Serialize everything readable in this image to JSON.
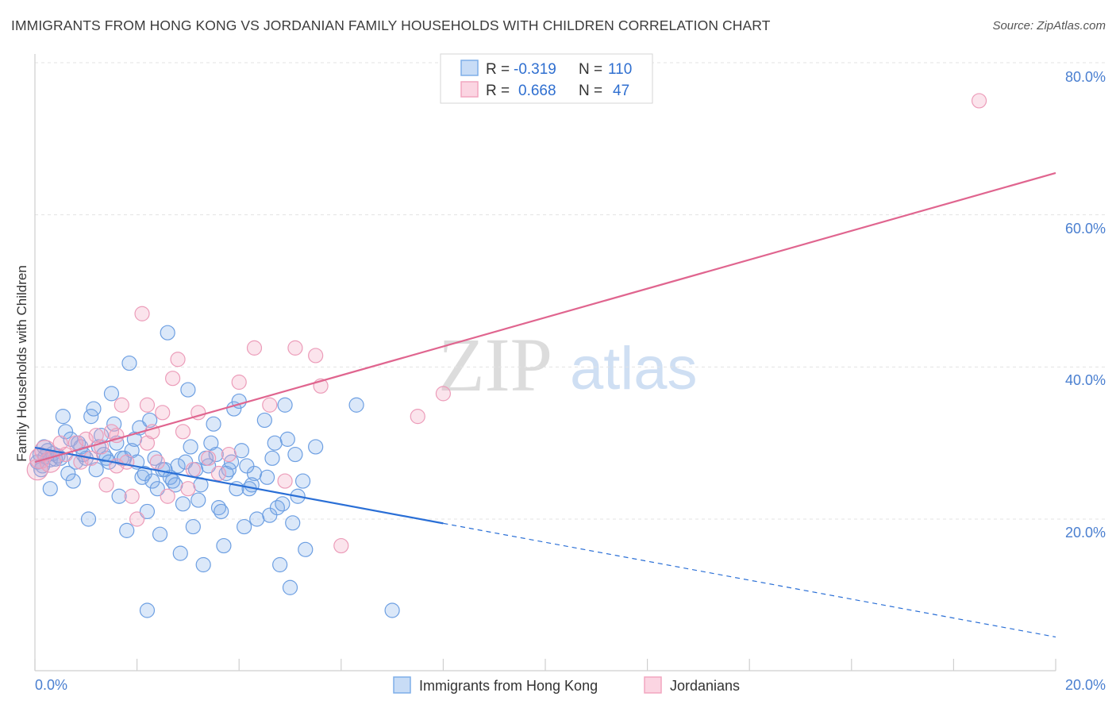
{
  "header": {
    "title": "IMMIGRANTS FROM HONG KONG VS JORDANIAN FAMILY HOUSEHOLDS WITH CHILDREN CORRELATION CHART",
    "source": "Source: ZipAtlas.com"
  },
  "watermark": {
    "zip": "ZIP",
    "atlas": "atlas"
  },
  "legend": {
    "rows": [
      {
        "r_label": "R =",
        "r_value": "-0.319",
        "n_label": "N =",
        "n_value": "110",
        "color": "#7eaee8"
      },
      {
        "r_label": "R =",
        "r_value": "0.668",
        "n_label": "N =",
        "n_value": "47",
        "color": "#f2a6c0"
      }
    ]
  },
  "bottom_legend": {
    "items": [
      {
        "label": "Immigrants from Hong Kong",
        "color": "#7eaee8"
      },
      {
        "label": "Jordanians",
        "color": "#f2a6c0"
      }
    ]
  },
  "chart_data": {
    "type": "scatter",
    "title": "IMMIGRANTS FROM HONG KONG VS JORDANIAN FAMILY HOUSEHOLDS WITH CHILDREN CORRELATION CHART",
    "xlabel": "",
    "ylabel": "Family Households with Children",
    "xlim": [
      0,
      20
    ],
    "ylim": [
      0,
      80
    ],
    "x_tick_labels": [
      "0.0%",
      "20.0%"
    ],
    "y_tick_labels": [
      "20.0%",
      "40.0%",
      "60.0%",
      "80.0%"
    ],
    "y_ticks": [
      20,
      40,
      60,
      80
    ],
    "grid": "horizontal dashed",
    "legend_position": "top-center",
    "series": [
      {
        "name": "Immigrants from Hong Kong",
        "color": "#5b93e0",
        "line_color": "#2a6fd6",
        "trend": {
          "x_start": 0,
          "y_start": 29.4,
          "x_solid_end": 8.0,
          "x_end": 20,
          "y_end": 4.5
        },
        "points": [
          [
            0.05,
            27.5
          ],
          [
            0.1,
            28.5
          ],
          [
            0.15,
            27.0
          ],
          [
            0.2,
            28.2
          ],
          [
            0.25,
            29.0
          ],
          [
            0.3,
            27.8
          ],
          [
            0.35,
            28.6
          ],
          [
            0.4,
            27.9
          ],
          [
            0.45,
            28.3
          ],
          [
            0.5,
            28.0
          ],
          [
            0.6,
            31.5
          ],
          [
            0.7,
            30.5
          ],
          [
            0.8,
            27.5
          ],
          [
            0.9,
            29.5
          ],
          [
            1.0,
            28.0
          ],
          [
            1.1,
            33.5
          ],
          [
            1.2,
            26.5
          ],
          [
            1.3,
            31.0
          ],
          [
            1.4,
            28.0
          ],
          [
            1.5,
            36.5
          ],
          [
            1.6,
            30.0
          ],
          [
            1.7,
            28.0
          ],
          [
            1.8,
            18.5
          ],
          [
            1.9,
            29.0
          ],
          [
            2.0,
            27.5
          ],
          [
            2.1,
            25.5
          ],
          [
            2.2,
            21.0
          ],
          [
            2.3,
            25.0
          ],
          [
            2.4,
            24.0
          ],
          [
            2.5,
            26.5
          ],
          [
            2.6,
            44.5
          ],
          [
            2.7,
            25.0
          ],
          [
            2.8,
            27.0
          ],
          [
            2.9,
            22.0
          ],
          [
            3.0,
            37.0
          ],
          [
            3.1,
            19.0
          ],
          [
            3.2,
            22.5
          ],
          [
            3.3,
            14.0
          ],
          [
            3.4,
            27.0
          ],
          [
            3.5,
            32.5
          ],
          [
            3.6,
            21.5
          ],
          [
            3.7,
            16.5
          ],
          [
            3.8,
            26.5
          ],
          [
            3.9,
            34.5
          ],
          [
            4.0,
            35.5
          ],
          [
            4.1,
            19.0
          ],
          [
            4.2,
            24.0
          ],
          [
            4.3,
            26.0
          ],
          [
            4.5,
            33.0
          ],
          [
            4.6,
            20.5
          ],
          [
            4.7,
            30.0
          ],
          [
            4.8,
            14.0
          ],
          [
            4.9,
            35.0
          ],
          [
            5.0,
            11.0
          ],
          [
            5.1,
            28.5
          ],
          [
            5.3,
            16.0
          ],
          [
            5.5,
            29.5
          ],
          [
            6.3,
            35.0
          ],
          [
            7.0,
            8.0
          ],
          [
            2.2,
            8.0
          ],
          [
            0.3,
            24.0
          ],
          [
            0.55,
            33.5
          ],
          [
            0.65,
            26.0
          ],
          [
            0.75,
            25.0
          ],
          [
            0.85,
            30.0
          ],
          [
            0.95,
            28.5
          ],
          [
            1.05,
            20.0
          ],
          [
            1.15,
            34.5
          ],
          [
            1.25,
            29.5
          ],
          [
            1.35,
            28.5
          ],
          [
            1.45,
            27.5
          ],
          [
            1.55,
            32.5
          ],
          [
            1.65,
            23.0
          ],
          [
            1.75,
            28.0
          ],
          [
            1.85,
            40.5
          ],
          [
            1.95,
            30.5
          ],
          [
            2.05,
            32.0
          ],
          [
            2.15,
            26.0
          ],
          [
            2.25,
            33.0
          ],
          [
            2.35,
            28.0
          ],
          [
            2.45,
            18.0
          ],
          [
            2.55,
            26.5
          ],
          [
            2.65,
            25.5
          ],
          [
            2.75,
            24.5
          ],
          [
            2.85,
            15.5
          ],
          [
            2.95,
            27.5
          ],
          [
            3.05,
            29.5
          ],
          [
            3.15,
            26.5
          ],
          [
            3.25,
            24.5
          ],
          [
            3.35,
            28.0
          ],
          [
            3.45,
            30.0
          ],
          [
            3.55,
            28.5
          ],
          [
            3.65,
            21.0
          ],
          [
            3.75,
            26.0
          ],
          [
            3.85,
            27.5
          ],
          [
            3.95,
            24.0
          ],
          [
            4.05,
            29.0
          ],
          [
            4.15,
            27.0
          ],
          [
            4.25,
            24.5
          ],
          [
            4.35,
            20.0
          ],
          [
            4.55,
            25.5
          ],
          [
            4.65,
            28.0
          ],
          [
            4.75,
            21.5
          ],
          [
            4.85,
            22.0
          ],
          [
            4.95,
            30.5
          ],
          [
            5.05,
            19.5
          ],
          [
            5.15,
            23.0
          ],
          [
            5.25,
            25.0
          ],
          [
            0.12,
            26.5
          ],
          [
            0.18,
            29.5
          ]
        ]
      },
      {
        "name": "Jordanians",
        "color": "#f09bbb",
        "line_color": "#e0658f",
        "trend": {
          "x_start": 0,
          "y_start": 27.5,
          "x_solid_end": 20,
          "x_end": 20,
          "y_end": 65.5
        },
        "points": [
          [
            0.05,
            26.5
          ],
          [
            0.1,
            28.0
          ],
          [
            0.2,
            29.0
          ],
          [
            0.3,
            27.5
          ],
          [
            0.5,
            30.0
          ],
          [
            0.6,
            28.5
          ],
          [
            0.8,
            30.0
          ],
          [
            0.9,
            27.5
          ],
          [
            1.0,
            30.5
          ],
          [
            1.1,
            28.0
          ],
          [
            1.2,
            31.0
          ],
          [
            1.3,
            29.5
          ],
          [
            1.4,
            24.5
          ],
          [
            1.5,
            31.5
          ],
          [
            1.6,
            27.0
          ],
          [
            1.7,
            35.0
          ],
          [
            1.8,
            27.5
          ],
          [
            1.9,
            23.0
          ],
          [
            2.0,
            20.0
          ],
          [
            2.1,
            47.0
          ],
          [
            2.2,
            35.0
          ],
          [
            2.3,
            31.5
          ],
          [
            2.4,
            27.5
          ],
          [
            2.5,
            34.0
          ],
          [
            2.6,
            23.0
          ],
          [
            2.7,
            38.5
          ],
          [
            2.8,
            41.0
          ],
          [
            2.9,
            31.5
          ],
          [
            3.0,
            24.0
          ],
          [
            3.1,
            26.5
          ],
          [
            3.2,
            34.0
          ],
          [
            3.4,
            28.0
          ],
          [
            3.6,
            26.0
          ],
          [
            3.8,
            28.5
          ],
          [
            4.0,
            38.0
          ],
          [
            4.3,
            42.5
          ],
          [
            4.6,
            35.0
          ],
          [
            4.9,
            25.0
          ],
          [
            5.1,
            42.5
          ],
          [
            5.5,
            41.5
          ],
          [
            5.6,
            37.5
          ],
          [
            6.0,
            16.5
          ],
          [
            7.5,
            33.5
          ],
          [
            8.0,
            36.5
          ],
          [
            18.5,
            75.0
          ],
          [
            2.2,
            30.0
          ],
          [
            1.6,
            31.0
          ]
        ]
      }
    ]
  }
}
